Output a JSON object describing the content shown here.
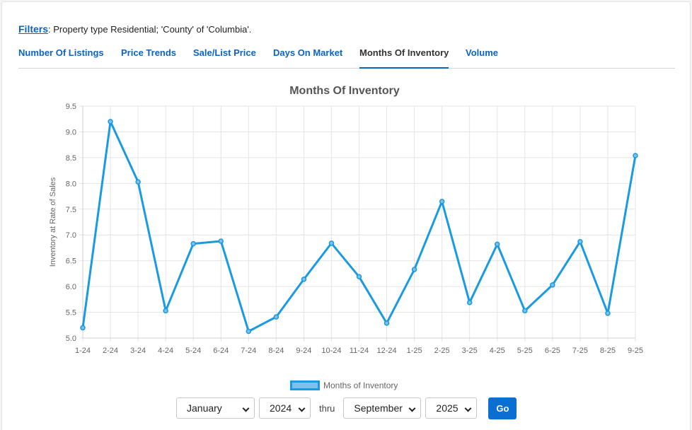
{
  "filters": {
    "link_label": "Filters",
    "text": ": Property type Residential; 'County' of 'Columbia'."
  },
  "tabs": [
    {
      "label": "Number Of Listings"
    },
    {
      "label": "Price Trends"
    },
    {
      "label": "Sale/List Price"
    },
    {
      "label": "Days On Market"
    },
    {
      "label": "Months Of Inventory",
      "active": true
    },
    {
      "label": "Volume"
    }
  ],
  "chart_data": {
    "type": "line",
    "title": "Months Of Inventory",
    "xlabel": "",
    "ylabel": "Inventory at Rate of Sales",
    "ylim": [
      5.0,
      9.5
    ],
    "yticks": [
      "9.5",
      "9.0",
      "8.5",
      "8.0",
      "7.5",
      "7.0",
      "6.5",
      "6.0",
      "5.5",
      "5.0"
    ],
    "categories": [
      "1-24",
      "2-24",
      "3-24",
      "4-24",
      "5-24",
      "6-24",
      "7-24",
      "8-24",
      "9-24",
      "10-24",
      "11-24",
      "12-24",
      "1-25",
      "2-25",
      "3-25",
      "4-25",
      "5-25",
      "6-25",
      "7-25",
      "8-25",
      "9-25"
    ],
    "series": [
      {
        "name": "Months of Inventory",
        "values": [
          5.2,
          9.2,
          8.03,
          5.53,
          6.83,
          6.88,
          5.13,
          5.41,
          6.14,
          6.84,
          6.19,
          5.29,
          6.33,
          7.65,
          5.69,
          6.82,
          5.53,
          6.03,
          6.87,
          5.48,
          8.54
        ]
      }
    ],
    "grid": true,
    "legend_position": "bottom",
    "line_color": "#1a9ae0",
    "legend_fill": "#7cc0ec"
  },
  "controls": {
    "from_month": "January",
    "from_year": "2024",
    "thru_label": "thru",
    "to_month": "September",
    "to_year": "2025",
    "go_label": "Go"
  },
  "colors": {
    "accent": "#0b63c4",
    "go_button": "#0b6fd1"
  }
}
